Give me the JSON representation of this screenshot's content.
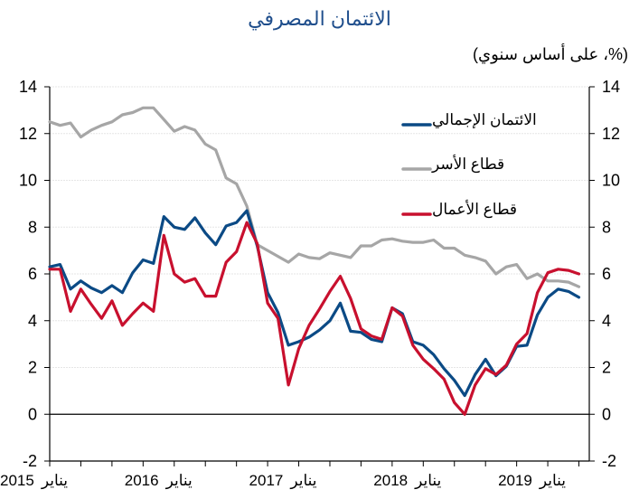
{
  "chart_data": {
    "type": "line",
    "title": "الائتمان المصرفي",
    "subtitle": "(%، على أساس سنوي)",
    "xlabel": "",
    "ylabel": "",
    "ylim": [
      -2,
      14
    ],
    "yticks": [
      -2,
      0,
      2,
      4,
      6,
      8,
      10,
      12,
      14
    ],
    "ytick_labels": [
      "-2",
      "0",
      "2",
      "4",
      "6",
      "8",
      "10",
      "12",
      "14"
    ],
    "x_start": "2015-01",
    "x_frequency": "monthly",
    "x_tick_labels": [
      {
        "year": "2015",
        "month": "يناير"
      },
      {
        "year": "2016",
        "month": "يناير"
      },
      {
        "year": "2017",
        "month": "يناير"
      },
      {
        "year": "2018",
        "month": "يناير"
      },
      {
        "year": "2019",
        "month": "يناير"
      }
    ],
    "grid": true,
    "dual_axis": true,
    "legend_position": "top-right",
    "series": [
      {
        "name": "الائتمان الإجمالي",
        "color": "#0b4a85",
        "values": [
          6.3,
          6.4,
          5.35,
          5.7,
          5.4,
          5.2,
          5.5,
          5.2,
          6.05,
          6.6,
          6.45,
          8.45,
          8.0,
          7.9,
          8.4,
          7.75,
          7.25,
          8.05,
          8.2,
          8.7,
          7.2,
          5.2,
          4.35,
          2.95,
          3.1,
          3.3,
          3.6,
          4.0,
          4.75,
          3.55,
          3.5,
          3.2,
          3.1,
          4.55,
          4.3,
          3.1,
          2.95,
          2.55,
          1.95,
          1.45,
          0.8,
          1.7,
          2.35,
          1.65,
          2.05,
          2.9,
          2.95,
          4.25,
          5.0,
          5.35,
          5.25,
          5.0
        ]
      },
      {
        "name": "قطاع الأسر",
        "color": "#a6a6a6",
        "values": [
          12.5,
          12.35,
          12.45,
          11.85,
          12.15,
          12.35,
          12.5,
          12.8,
          12.9,
          13.1,
          13.1,
          12.6,
          12.1,
          12.3,
          12.15,
          11.55,
          11.3,
          10.1,
          9.85,
          8.9,
          7.25,
          7.0,
          6.75,
          6.5,
          6.85,
          6.7,
          6.65,
          6.9,
          6.8,
          6.7,
          7.2,
          7.2,
          7.45,
          7.5,
          7.4,
          7.35,
          7.35,
          7.45,
          7.1,
          7.1,
          6.8,
          6.7,
          6.55,
          6.0,
          6.3,
          6.4,
          5.8,
          6.0,
          5.7,
          5.7,
          5.65,
          5.45
        ]
      },
      {
        "name": "قطاع الأعمال",
        "color": "#c8102e",
        "values": [
          6.2,
          6.2,
          4.4,
          5.35,
          4.7,
          4.1,
          4.85,
          3.8,
          4.3,
          4.75,
          4.4,
          7.65,
          6.0,
          5.65,
          5.8,
          5.05,
          5.05,
          6.5,
          6.95,
          8.2,
          7.3,
          4.75,
          4.1,
          1.25,
          2.8,
          3.8,
          4.5,
          5.25,
          5.9,
          4.95,
          3.65,
          3.35,
          3.2,
          4.55,
          4.2,
          2.95,
          2.35,
          1.95,
          1.5,
          0.5,
          0.0,
          1.25,
          1.95,
          1.7,
          2.1,
          3.0,
          3.45,
          5.2,
          6.05,
          6.2,
          6.15,
          6.0
        ]
      }
    ]
  }
}
